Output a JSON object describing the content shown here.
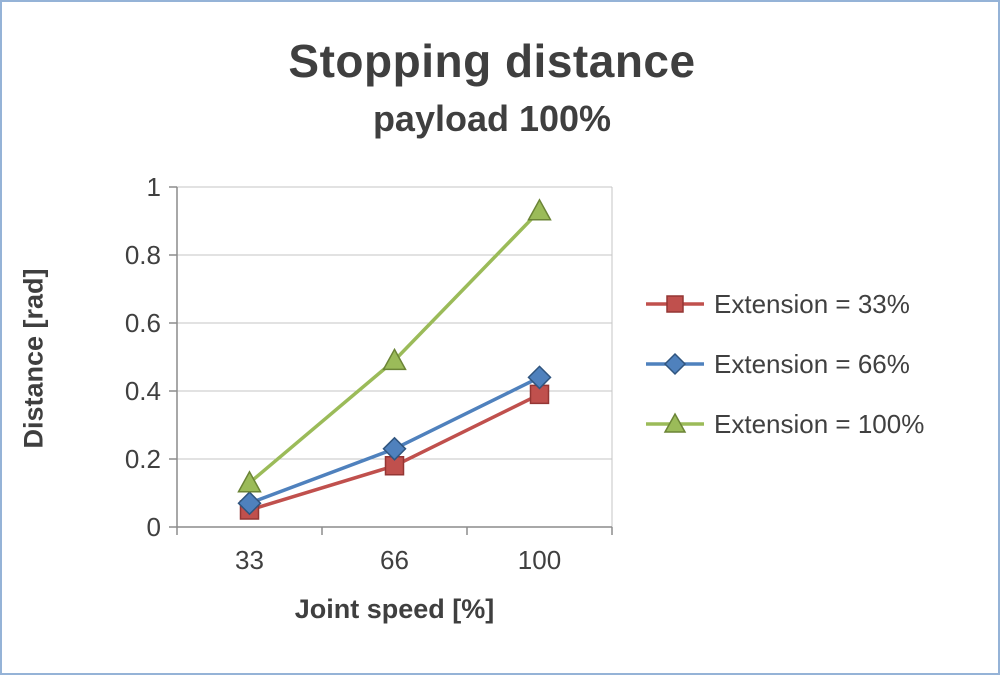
{
  "chart_data": {
    "type": "line",
    "title": "Stopping distance",
    "subtitle": "payload 100%",
    "xlabel": "Joint speed [%]",
    "ylabel": "Distance [rad]",
    "categories": [
      "33",
      "66",
      "100"
    ],
    "ylim": [
      0,
      1
    ],
    "yticks": [
      0,
      0.2,
      0.4,
      0.6,
      0.8,
      1
    ],
    "ytick_labels": [
      "0",
      "0.2",
      "0.4",
      "0.6",
      "0.8",
      "1"
    ],
    "grid": true,
    "legend_position": "right",
    "series": [
      {
        "name": "Extension = 33%",
        "values": [
          0.05,
          0.18,
          0.39
        ],
        "color": "#C0504D",
        "edge": "#943634",
        "marker": "square"
      },
      {
        "name": "Extension = 66%",
        "values": [
          0.07,
          0.23,
          0.44
        ],
        "color": "#4F81BD",
        "edge": "#30557F",
        "marker": "diamond"
      },
      {
        "name": "Extension = 100%",
        "values": [
          0.13,
          0.49,
          0.93
        ],
        "color": "#9BBB59",
        "edge": "#6B8436",
        "marker": "triangle"
      }
    ],
    "colors": {
      "grid": "#C6C6C6",
      "axis": "#8C8C8C",
      "text": "#404040",
      "border": "#95B3D7"
    }
  }
}
